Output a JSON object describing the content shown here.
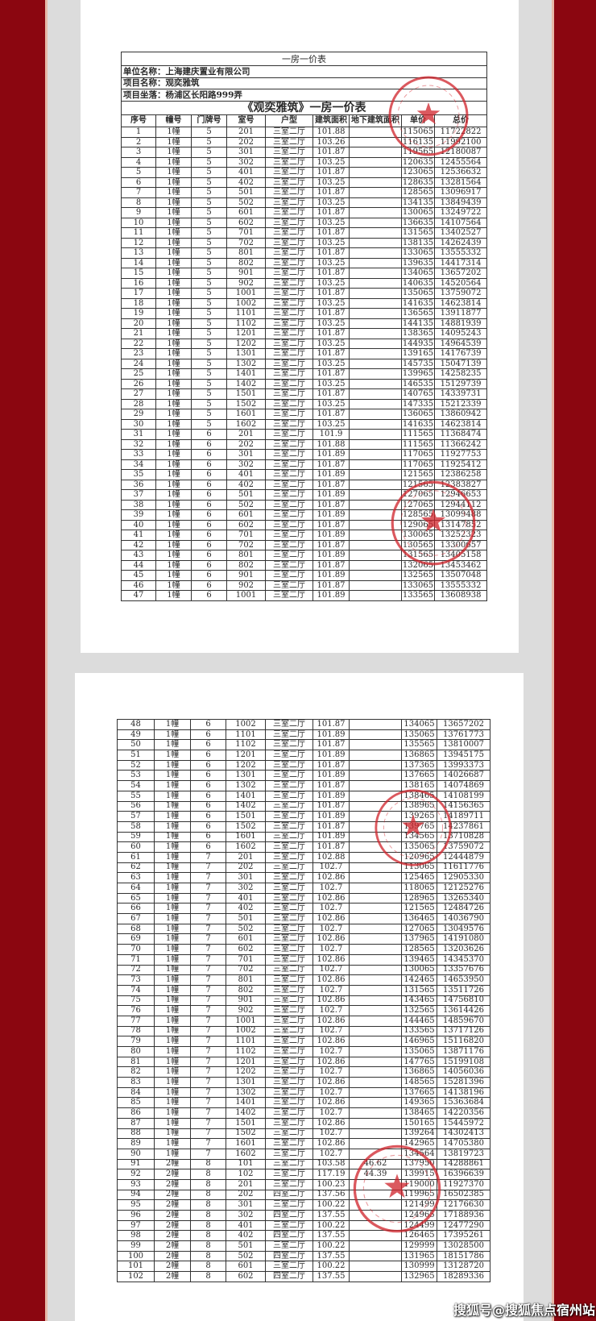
{
  "page1": {
    "doc_title": "一房一价表",
    "company": "单位名称：上海建庆置业有限公司",
    "project": "项目名称：观奕雅筑",
    "location": "项目坐落：杨浦区长阳路999弄",
    "table_title": "《观奕雅筑》一房一价表",
    "headers": [
      "序号",
      "幢号",
      "门牌号",
      "室号",
      "户型",
      "建筑面积",
      "地下建筑面积",
      "单价",
      "总价"
    ],
    "rows": [
      [
        "1",
        "1幢",
        "5",
        "201",
        "三室二厅",
        "101.88",
        "",
        "115065",
        "11722822"
      ],
      [
        "2",
        "1幢",
        "5",
        "202",
        "三室二厅",
        "103.26",
        "",
        "116135",
        "11992100"
      ],
      [
        "3",
        "1幢",
        "5",
        "301",
        "三室二厅",
        "101.87",
        "",
        "119565",
        "12180087"
      ],
      [
        "4",
        "1幢",
        "5",
        "302",
        "三室二厅",
        "103.25",
        "",
        "120635",
        "12455564"
      ],
      [
        "5",
        "1幢",
        "5",
        "401",
        "三室二厅",
        "101.87",
        "",
        "123065",
        "12536632"
      ],
      [
        "6",
        "1幢",
        "5",
        "402",
        "三室二厅",
        "103.25",
        "",
        "128635",
        "13281564"
      ],
      [
        "7",
        "1幢",
        "5",
        "501",
        "三室二厅",
        "101.87",
        "",
        "128565",
        "13096917"
      ],
      [
        "8",
        "1幢",
        "5",
        "502",
        "三室二厅",
        "103.25",
        "",
        "134135",
        "13849439"
      ],
      [
        "9",
        "1幢",
        "5",
        "601",
        "三室二厅",
        "101.87",
        "",
        "130065",
        "13249722"
      ],
      [
        "10",
        "1幢",
        "5",
        "602",
        "三室二厅",
        "103.25",
        "",
        "136635",
        "14107564"
      ],
      [
        "11",
        "1幢",
        "5",
        "701",
        "三室二厅",
        "101.87",
        "",
        "131565",
        "13402527"
      ],
      [
        "12",
        "1幢",
        "5",
        "702",
        "三室二厅",
        "103.25",
        "",
        "138135",
        "14262439"
      ],
      [
        "13",
        "1幢",
        "5",
        "801",
        "三室二厅",
        "101.87",
        "",
        "133065",
        "13555332"
      ],
      [
        "14",
        "1幢",
        "5",
        "802",
        "三室二厅",
        "103.25",
        "",
        "139635",
        "14417314"
      ],
      [
        "15",
        "1幢",
        "5",
        "901",
        "三室二厅",
        "101.87",
        "",
        "134065",
        "13657202"
      ],
      [
        "16",
        "1幢",
        "5",
        "902",
        "三室二厅",
        "103.25",
        "",
        "140635",
        "14520564"
      ],
      [
        "17",
        "1幢",
        "5",
        "1001",
        "三室二厅",
        "101.87",
        "",
        "135065",
        "13759072"
      ],
      [
        "18",
        "1幢",
        "5",
        "1002",
        "三室二厅",
        "103.25",
        "",
        "141635",
        "14623814"
      ],
      [
        "19",
        "1幢",
        "5",
        "1101",
        "三室二厅",
        "101.87",
        "",
        "136565",
        "13911877"
      ],
      [
        "20",
        "1幢",
        "5",
        "1102",
        "三室二厅",
        "103.25",
        "",
        "144135",
        "14881939"
      ],
      [
        "21",
        "1幢",
        "5",
        "1201",
        "三室二厅",
        "101.87",
        "",
        "138365",
        "14095243"
      ],
      [
        "22",
        "1幢",
        "5",
        "1202",
        "三室二厅",
        "103.25",
        "",
        "144935",
        "14964539"
      ],
      [
        "23",
        "1幢",
        "5",
        "1301",
        "三室二厅",
        "101.87",
        "",
        "139165",
        "14176739"
      ],
      [
        "24",
        "1幢",
        "5",
        "1302",
        "三室二厅",
        "103.25",
        "",
        "145735",
        "15047139"
      ],
      [
        "25",
        "1幢",
        "5",
        "1401",
        "三室二厅",
        "101.87",
        "",
        "139965",
        "14258235"
      ],
      [
        "26",
        "1幢",
        "5",
        "1402",
        "三室二厅",
        "103.25",
        "",
        "146535",
        "15129739"
      ],
      [
        "27",
        "1幢",
        "5",
        "1501",
        "三室二厅",
        "101.87",
        "",
        "140765",
        "14339731"
      ],
      [
        "28",
        "1幢",
        "5",
        "1502",
        "三室二厅",
        "103.25",
        "",
        "147335",
        "15212339"
      ],
      [
        "29",
        "1幢",
        "5",
        "1601",
        "三室二厅",
        "101.87",
        "",
        "136065",
        "13860942"
      ],
      [
        "30",
        "1幢",
        "5",
        "1602",
        "三室二厅",
        "103.25",
        "",
        "141635",
        "14623814"
      ],
      [
        "31",
        "1幢",
        "6",
        "201",
        "三室二厅",
        "101.9",
        "",
        "111565",
        "11368474"
      ],
      [
        "32",
        "1幢",
        "6",
        "202",
        "三室二厅",
        "101.88",
        "",
        "111565",
        "11366242"
      ],
      [
        "33",
        "1幢",
        "6",
        "301",
        "三室二厅",
        "101.89",
        "",
        "117065",
        "11927753"
      ],
      [
        "34",
        "1幢",
        "6",
        "302",
        "三室二厅",
        "101.87",
        "",
        "117065",
        "11925412"
      ],
      [
        "35",
        "1幢",
        "6",
        "401",
        "三室二厅",
        "101.89",
        "",
        "121565",
        "12386258"
      ],
      [
        "36",
        "1幢",
        "6",
        "402",
        "三室二厅",
        "101.87",
        "",
        "121565",
        "12383827"
      ],
      [
        "37",
        "1幢",
        "6",
        "501",
        "三室二厅",
        "101.89",
        "",
        "127065",
        "12946653"
      ],
      [
        "38",
        "1幢",
        "6",
        "502",
        "三室二厅",
        "101.87",
        "",
        "127065",
        "12944112"
      ],
      [
        "39",
        "1幢",
        "6",
        "601",
        "三室二厅",
        "101.89",
        "",
        "128565",
        "13099488"
      ],
      [
        "40",
        "1幢",
        "6",
        "602",
        "三室二厅",
        "101.87",
        "",
        "129065",
        "13147852"
      ],
      [
        "41",
        "1幢",
        "6",
        "701",
        "三室二厅",
        "101.89",
        "",
        "130065",
        "13252323"
      ],
      [
        "42",
        "1幢",
        "6",
        "702",
        "三室二厅",
        "101.87",
        "",
        "130565",
        "13300657"
      ],
      [
        "43",
        "1幢",
        "6",
        "801",
        "三室二厅",
        "101.89",
        "",
        "131565",
        "13405158"
      ],
      [
        "44",
        "1幢",
        "6",
        "802",
        "三室二厅",
        "101.87",
        "",
        "132065",
        "13453462"
      ],
      [
        "45",
        "1幢",
        "6",
        "901",
        "三室二厅",
        "101.89",
        "",
        "132565",
        "13507048"
      ],
      [
        "46",
        "1幢",
        "6",
        "902",
        "三室二厅",
        "101.87",
        "",
        "133065",
        "13555332"
      ],
      [
        "47",
        "1幢",
        "6",
        "1001",
        "三室二厅",
        "101.89",
        "",
        "133565",
        "13608938"
      ]
    ]
  },
  "page2": {
    "rows": [
      [
        "48",
        "1幢",
        "6",
        "1002",
        "三室二厅",
        "101.87",
        "",
        "134065",
        "13657202"
      ],
      [
        "49",
        "1幢",
        "6",
        "1101",
        "三室二厅",
        "101.89",
        "",
        "135065",
        "13761773"
      ],
      [
        "50",
        "1幢",
        "6",
        "1102",
        "三室二厅",
        "101.87",
        "",
        "135565",
        "13810007"
      ],
      [
        "51",
        "1幢",
        "6",
        "1201",
        "三室二厅",
        "101.89",
        "",
        "136865",
        "13945175"
      ],
      [
        "52",
        "1幢",
        "6",
        "1202",
        "三室二厅",
        "101.87",
        "",
        "137365",
        "13993373"
      ],
      [
        "53",
        "1幢",
        "6",
        "1301",
        "三室二厅",
        "101.89",
        "",
        "137665",
        "14026687"
      ],
      [
        "54",
        "1幢",
        "6",
        "1302",
        "三室二厅",
        "101.87",
        "",
        "138165",
        "14074869"
      ],
      [
        "55",
        "1幢",
        "6",
        "1401",
        "三室二厅",
        "101.89",
        "",
        "138465",
        "14108199"
      ],
      [
        "56",
        "1幢",
        "6",
        "1402",
        "三室二厅",
        "101.87",
        "",
        "138965",
        "14156365"
      ],
      [
        "57",
        "1幢",
        "6",
        "1501",
        "三室二厅",
        "101.89",
        "",
        "139265",
        "14189711"
      ],
      [
        "58",
        "1幢",
        "6",
        "1502",
        "三室二厅",
        "101.87",
        "",
        "139765",
        "14237861"
      ],
      [
        "59",
        "1幢",
        "6",
        "1601",
        "三室二厅",
        "101.89",
        "",
        "134565",
        "13710828"
      ],
      [
        "60",
        "1幢",
        "6",
        "1602",
        "三室二厅",
        "101.87",
        "",
        "135065",
        "13759072"
      ],
      [
        "61",
        "1幢",
        "7",
        "201",
        "三室二厅",
        "102.88",
        "",
        "120965",
        "12444879"
      ],
      [
        "62",
        "1幢",
        "7",
        "202",
        "三室二厅",
        "102.7",
        "",
        "113065",
        "11611776"
      ],
      [
        "63",
        "1幢",
        "7",
        "301",
        "三室二厅",
        "102.86",
        "",
        "125465",
        "12905330"
      ],
      [
        "64",
        "1幢",
        "7",
        "302",
        "三室二厅",
        "102.7",
        "",
        "118065",
        "12125276"
      ],
      [
        "65",
        "1幢",
        "7",
        "401",
        "三室二厅",
        "102.86",
        "",
        "128965",
        "13265340"
      ],
      [
        "66",
        "1幢",
        "7",
        "402",
        "三室二厅",
        "102.7",
        "",
        "121565",
        "12484726"
      ],
      [
        "67",
        "1幢",
        "7",
        "501",
        "三室二厅",
        "102.86",
        "",
        "136465",
        "14036790"
      ],
      [
        "68",
        "1幢",
        "7",
        "502",
        "三室二厅",
        "102.7",
        "",
        "127065",
        "13049576"
      ],
      [
        "69",
        "1幢",
        "7",
        "601",
        "三室二厅",
        "102.86",
        "",
        "137965",
        "14191080"
      ],
      [
        "70",
        "1幢",
        "7",
        "602",
        "三室二厅",
        "102.7",
        "",
        "128565",
        "13203626"
      ],
      [
        "71",
        "1幢",
        "7",
        "701",
        "三室二厅",
        "102.86",
        "",
        "139465",
        "14345370"
      ],
      [
        "72",
        "1幢",
        "7",
        "702",
        "三室二厅",
        "102.7",
        "",
        "130065",
        "13357676"
      ],
      [
        "73",
        "1幢",
        "7",
        "801",
        "三室二厅",
        "102.86",
        "",
        "142465",
        "14653950"
      ],
      [
        "74",
        "1幢",
        "7",
        "802",
        "三室二厅",
        "102.7",
        "",
        "131565",
        "13511726"
      ],
      [
        "75",
        "1幢",
        "7",
        "901",
        "三室二厅",
        "102.86",
        "",
        "143465",
        "14756810"
      ],
      [
        "76",
        "1幢",
        "7",
        "902",
        "三室二厅",
        "102.7",
        "",
        "132565",
        "13614426"
      ],
      [
        "77",
        "1幢",
        "7",
        "1001",
        "三室二厅",
        "102.86",
        "",
        "144465",
        "14859670"
      ],
      [
        "78",
        "1幢",
        "7",
        "1002",
        "三室二厅",
        "102.7",
        "",
        "133565",
        "13717126"
      ],
      [
        "79",
        "1幢",
        "7",
        "1101",
        "三室二厅",
        "102.86",
        "",
        "146965",
        "15116820"
      ],
      [
        "80",
        "1幢",
        "7",
        "1102",
        "三室二厅",
        "102.7",
        "",
        "135065",
        "13871176"
      ],
      [
        "81",
        "1幢",
        "7",
        "1201",
        "三室二厅",
        "102.86",
        "",
        "147765",
        "15199108"
      ],
      [
        "82",
        "1幢",
        "7",
        "1202",
        "三室二厅",
        "102.7",
        "",
        "136865",
        "14056036"
      ],
      [
        "83",
        "1幢",
        "7",
        "1301",
        "三室二厅",
        "102.86",
        "",
        "148565",
        "15281396"
      ],
      [
        "84",
        "1幢",
        "7",
        "1302",
        "三室二厅",
        "102.7",
        "",
        "137665",
        "14138196"
      ],
      [
        "85",
        "1幢",
        "7",
        "1401",
        "三室二厅",
        "102.86",
        "",
        "149365",
        "15363684"
      ],
      [
        "86",
        "1幢",
        "7",
        "1402",
        "三室二厅",
        "102.7",
        "",
        "138465",
        "14220356"
      ],
      [
        "87",
        "1幢",
        "7",
        "1501",
        "三室二厅",
        "102.86",
        "",
        "150165",
        "15445972"
      ],
      [
        "88",
        "1幢",
        "7",
        "1502",
        "三室二厅",
        "102.7",
        "",
        "139264",
        "14302413"
      ],
      [
        "89",
        "1幢",
        "7",
        "1601",
        "三室二厅",
        "102.86",
        "",
        "142965",
        "14705380"
      ],
      [
        "90",
        "1幢",
        "7",
        "1602",
        "三室二厅",
        "102.7",
        "",
        "134564",
        "13819723"
      ],
      [
        "91",
        "2幢",
        "8",
        "101",
        "三室二厅",
        "103.58",
        "46.62",
        "137950",
        "14288861"
      ],
      [
        "92",
        "2幢",
        "8",
        "102",
        "三室二厅",
        "117.19",
        "44.39",
        "139915",
        "16396639"
      ],
      [
        "93",
        "2幢",
        "8",
        "201",
        "三室二厅",
        "100.23",
        "",
        "119000",
        "11927370"
      ],
      [
        "94",
        "2幢",
        "8",
        "202",
        "四室二厅",
        "137.56",
        "",
        "119965",
        "16502385"
      ],
      [
        "95",
        "2幢",
        "8",
        "301",
        "三室二厅",
        "100.22",
        "",
        "121499",
        "12176630"
      ],
      [
        "96",
        "2幢",
        "8",
        "302",
        "四室二厅",
        "137.55",
        "",
        "124965",
        "17188936"
      ],
      [
        "97",
        "2幢",
        "8",
        "401",
        "三室二厅",
        "100.22",
        "",
        "124499",
        "12477290"
      ],
      [
        "98",
        "2幢",
        "8",
        "402",
        "四室二厅",
        "137.55",
        "",
        "126465",
        "17395261"
      ],
      [
        "99",
        "2幢",
        "8",
        "501",
        "三室二厅",
        "100.22",
        "",
        "129999",
        "13028500"
      ],
      [
        "100",
        "2幢",
        "8",
        "502",
        "四室二厅",
        "137.55",
        "",
        "131965",
        "18151786"
      ],
      [
        "101",
        "2幢",
        "8",
        "601",
        "三室二厅",
        "100.22",
        "",
        "130999",
        "13128720"
      ],
      [
        "102",
        "2幢",
        "8",
        "602",
        "四室二厅",
        "137.55",
        "",
        "132965",
        "18289336"
      ]
    ]
  },
  "watermark": "搜狐号@搜狐焦点宿州站",
  "colors": {
    "border_red": "#8b0610",
    "stamp_red": "#d0222a",
    "background_gray": "#dcdcdc"
  }
}
